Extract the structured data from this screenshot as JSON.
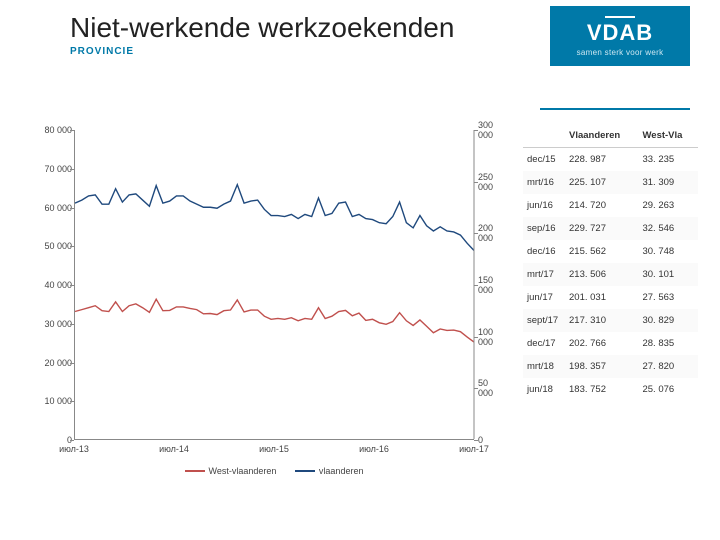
{
  "header": {
    "title": "Niet-werkende werkzoekenden",
    "subtitle": "PROVINCIE"
  },
  "logo": {
    "text": "VDAB",
    "tagline": "samen sterk voor werk"
  },
  "chart": {
    "type": "line",
    "background_color": "#ffffff",
    "left_axis": {
      "min": 0,
      "max": 80000,
      "step": 10000,
      "labels": [
        "0",
        "10 000",
        "20 000",
        "30 000",
        "40 000",
        "50 000",
        "60 000",
        "70 000",
        "80 000"
      ]
    },
    "right_axis": {
      "min": 0,
      "max": 300000,
      "step": 50000,
      "labels": [
        "0",
        "50 000",
        "100 000",
        "150 000",
        "200 000",
        "250 000",
        "300 000"
      ]
    },
    "x_axis": {
      "labels": [
        "июл-13",
        "июл-14",
        "июл-15",
        "июл-16",
        "июл-17"
      ],
      "min": 0,
      "max": 60
    },
    "series": [
      {
        "name": "West-vlaanderen",
        "color": "#c0504d",
        "axis": "left",
        "width": 1.4,
        "values": [
          33000,
          33500,
          34000,
          34500,
          33200,
          33000,
          35500,
          33000,
          34500,
          35000,
          34000,
          32800,
          36200,
          33200,
          33300,
          34200,
          34200,
          33800,
          33500,
          32400,
          32500,
          32200,
          33200,
          33400,
          36000,
          32900,
          33400,
          33400,
          31800,
          31000,
          31200,
          31000,
          31400,
          30600,
          31200,
          31000,
          34000,
          31200,
          31800,
          33000,
          33300,
          31900,
          32600,
          30700,
          31000,
          30100,
          29700,
          30400,
          32700,
          30600,
          29400,
          30800,
          29200,
          27500,
          28500,
          28100,
          28200,
          27800,
          26400,
          25100
        ]
      },
      {
        "name": "vlaanderen",
        "color": "#1f497d",
        "axis": "right",
        "width": 1.4,
        "values": [
          229000,
          232000,
          236000,
          237000,
          228000,
          228000,
          243000,
          230000,
          237000,
          238000,
          232000,
          226000,
          246000,
          229000,
          231000,
          236000,
          236000,
          231000,
          228000,
          225000,
          225000,
          224000,
          228000,
          231000,
          247000,
          229000,
          231000,
          232000,
          223000,
          217000,
          217000,
          216000,
          218000,
          214000,
          218000,
          216000,
          234000,
          217000,
          219000,
          229000,
          230000,
          216000,
          218000,
          214000,
          213000,
          210000,
          209000,
          216000,
          230000,
          210000,
          205000,
          217000,
          207000,
          202000,
          206000,
          202000,
          201000,
          198000,
          190000,
          183000
        ]
      }
    ],
    "legend": {
      "items": [
        "West-vlaanderen",
        "vlaanderen"
      ]
    }
  },
  "table": {
    "columns": [
      "",
      "Vlaanderen",
      "West-Vla"
    ],
    "rows": [
      [
        "dec/15",
        "228. 987",
        "33. 235"
      ],
      [
        "mrt/16",
        "225. 107",
        "31. 309"
      ],
      [
        "jun/16",
        "214. 720",
        "29. 263"
      ],
      [
        "sep/16",
        "229. 727",
        "32. 546"
      ],
      [
        "dec/16",
        "215. 562",
        "30. 748"
      ],
      [
        "mrt/17",
        "213. 506",
        "30. 101"
      ],
      [
        "jun/17",
        "201. 031",
        "27. 563"
      ],
      [
        "sept/17",
        "217. 310",
        "30. 829"
      ],
      [
        "dec/17",
        "202. 766",
        "28. 835"
      ],
      [
        "mrt/18",
        "198. 357",
        "27. 820"
      ],
      [
        "jun/18",
        "183. 752",
        "25. 076"
      ]
    ]
  },
  "colors": {
    "accent": "#0079a8",
    "text": "#333333"
  }
}
